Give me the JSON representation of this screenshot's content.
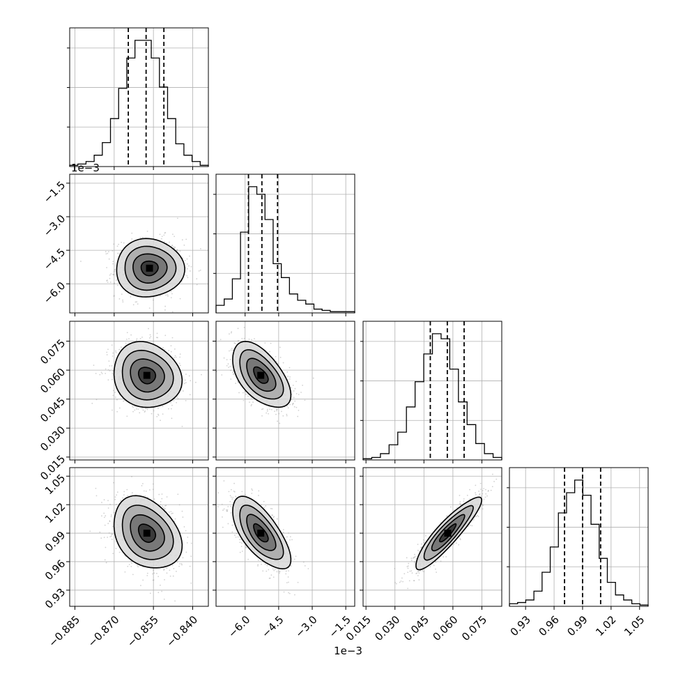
{
  "chart_data": {
    "type": "corner",
    "parameters": [
      {
        "range": [
          -0.887,
          -0.834
        ],
        "ticks": [
          "−0.885",
          "−0.870",
          "−0.855",
          "−0.840"
        ],
        "tick_values": [
          -0.885,
          -0.87,
          -0.855,
          -0.84
        ],
        "quantiles": [
          -0.8646,
          -0.8578,
          -0.851
        ],
        "offset": ""
      },
      {
        "range": [
          -7.3,
          -1.1
        ],
        "ticks": [
          "−6.0",
          "−4.5",
          "−3.0",
          "−1.5"
        ],
        "tick_values": [
          -6.0,
          -4.5,
          -3.0,
          -1.5
        ],
        "quantiles": [
          -5.85,
          -5.25,
          -4.55
        ],
        "offset": "1e−3"
      },
      {
        "range": [
          0.0135,
          0.0853
        ],
        "ticks": [
          "0.015",
          "0.030",
          "0.045",
          "0.060",
          "0.075"
        ],
        "tick_values": [
          0.015,
          0.03,
          0.045,
          0.06,
          0.075
        ],
        "quantiles": [
          0.0483,
          0.0571,
          0.0658
        ],
        "offset": ""
      },
      {
        "range": [
          0.913,
          1.059
        ],
        "ticks": [
          "0.93",
          "0.96",
          "0.99",
          "1.02",
          "1.05"
        ],
        "tick_values": [
          0.93,
          0.96,
          0.99,
          1.02,
          1.05
        ],
        "quantiles": [
          0.971,
          0.99,
          1.009
        ],
        "offset": ""
      }
    ],
    "histograms": [
      [
        1,
        2,
        4,
        9,
        19,
        38,
        62,
        86,
        100,
        100,
        86,
        63,
        38,
        18,
        9,
        4,
        1
      ],
      [
        6,
        11,
        27,
        64,
        100,
        94,
        74,
        39,
        28,
        15,
        10,
        7,
        3,
        2,
        1,
        1,
        1
      ],
      [
        1,
        2,
        5,
        12,
        22,
        42,
        62,
        84,
        100,
        96,
        72,
        46,
        28,
        13,
        5,
        2
      ],
      [
        2,
        3,
        5,
        12,
        27,
        47,
        74,
        90,
        100,
        88,
        65,
        38,
        19,
        9,
        5,
        2,
        1
      ]
    ],
    "pairs": [
      {
        "x": 0,
        "y": 1,
        "center": [
          -0.8565,
          -5.3
        ],
        "sd": [
          0.0065,
          0.65
        ],
        "rho": 0.0
      },
      {
        "x": 0,
        "y": 2,
        "center": [
          -0.8575,
          0.0573
        ],
        "sd": [
          0.0065,
          0.0085
        ],
        "rho": -0.12
      },
      {
        "x": 1,
        "y": 2,
        "center": [
          -5.3,
          0.0573
        ],
        "sd": [
          0.65,
          0.0085
        ],
        "rho": -0.55
      },
      {
        "x": 0,
        "y": 3,
        "center": [
          -0.8575,
          0.99
        ],
        "sd": [
          0.0065,
          0.019
        ],
        "rho": -0.3
      },
      {
        "x": 1,
        "y": 3,
        "center": [
          -5.3,
          0.99
        ],
        "sd": [
          0.65,
          0.019
        ],
        "rho": -0.68
      },
      {
        "x": 2,
        "y": 3,
        "center": [
          0.0573,
          0.99
        ],
        "sd": [
          0.0085,
          0.019
        ],
        "rho": 0.9
      }
    ],
    "contour_sigma_levels": [
      0.5,
      1.0,
      1.5,
      2.0
    ],
    "grid": true
  }
}
